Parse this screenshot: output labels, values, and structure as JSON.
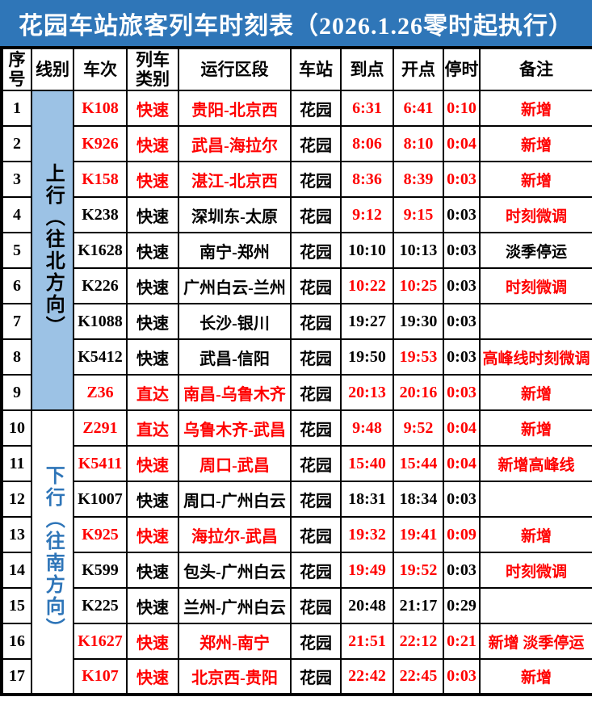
{
  "title": "花园车站旅客列车时刻表（2026.1.26零时起执行）",
  "colors": {
    "header_blue": "#2F76B8",
    "light_blue": "#9CC2E5",
    "direction_down_text": "#2E75B8",
    "highlight_red": "#FF0000",
    "text_black": "#000000"
  },
  "columns": [
    "序号",
    "线别",
    "车次",
    "列车类别",
    "运行区段",
    "车站",
    "到点",
    "开点",
    "停时",
    "备注"
  ],
  "groups": [
    {
      "label": "上行（往北方向）",
      "rows": 9,
      "bg": "#9CC2E5",
      "color": "#000000"
    },
    {
      "label": "下行（往南方向）",
      "rows": 8,
      "bg": "#FFFFFF",
      "color": "#2E75B8"
    }
  ],
  "rows": [
    {
      "no": "1",
      "train": "K108",
      "type": "快速",
      "section": "贵阳-北京西",
      "station": "花园",
      "arrive": "6:31",
      "depart": "6:41",
      "stop": "0:10",
      "remark": "新增",
      "red": [
        "train",
        "type",
        "section",
        "arrive",
        "depart",
        "stop",
        "remark"
      ]
    },
    {
      "no": "2",
      "train": "K926",
      "type": "快速",
      "section": "武昌-海拉尔",
      "station": "花园",
      "arrive": "8:06",
      "depart": "8:10",
      "stop": "0:04",
      "remark": "新增",
      "red": [
        "train",
        "type",
        "section",
        "arrive",
        "depart",
        "stop",
        "remark"
      ]
    },
    {
      "no": "3",
      "train": "K158",
      "type": "快速",
      "section": "湛江-北京西",
      "station": "花园",
      "arrive": "8:36",
      "depart": "8:39",
      "stop": "0:03",
      "remark": "新增",
      "red": [
        "train",
        "type",
        "section",
        "arrive",
        "depart",
        "stop",
        "remark"
      ]
    },
    {
      "no": "4",
      "train": "K238",
      "type": "快速",
      "section": "深圳东-太原",
      "station": "花园",
      "arrive": "9:12",
      "depart": "9:15",
      "stop": "0:03",
      "remark": "时刻微调",
      "red": [
        "arrive",
        "depart",
        "remark"
      ]
    },
    {
      "no": "5",
      "train": "K1628",
      "type": "快速",
      "section": "南宁-郑州",
      "station": "花园",
      "arrive": "10:10",
      "depart": "10:13",
      "stop": "0:03",
      "remark": "淡季停运",
      "red": []
    },
    {
      "no": "6",
      "train": "K226",
      "type": "快速",
      "section": "广州白云-兰州",
      "station": "花园",
      "arrive": "10:22",
      "depart": "10:25",
      "stop": "0:03",
      "remark": "时刻微调",
      "red": [
        "arrive",
        "depart",
        "remark"
      ]
    },
    {
      "no": "7",
      "train": "K1088",
      "type": "快速",
      "section": "长沙-银川",
      "station": "花园",
      "arrive": "19:27",
      "depart": "19:30",
      "stop": "0:03",
      "remark": "",
      "red": []
    },
    {
      "no": "8",
      "train": "K5412",
      "type": "快速",
      "section": "武昌-信阳",
      "station": "花园",
      "arrive": "19:50",
      "depart": "19:53",
      "stop": "0:03",
      "remark": "高峰线时刻微调",
      "red": [
        "depart",
        "remark"
      ]
    },
    {
      "no": "9",
      "train": "Z36",
      "type": "直达",
      "section": "南昌-乌鲁木齐",
      "station": "花园",
      "arrive": "20:13",
      "depart": "20:16",
      "stop": "0:03",
      "remark": "新增",
      "red": [
        "train",
        "type",
        "section",
        "arrive",
        "depart",
        "stop",
        "remark"
      ]
    },
    {
      "no": "10",
      "train": "Z291",
      "type": "直达",
      "section": "乌鲁木齐-武昌",
      "station": "花园",
      "arrive": "9:48",
      "depart": "9:52",
      "stop": "0:04",
      "remark": "新增",
      "red": [
        "train",
        "type",
        "section",
        "arrive",
        "depart",
        "stop",
        "remark"
      ]
    },
    {
      "no": "11",
      "train": "K5411",
      "type": "快速",
      "section": "周口-武昌",
      "station": "花园",
      "arrive": "15:40",
      "depart": "15:44",
      "stop": "0:04",
      "remark": "新增高峰线",
      "red": [
        "train",
        "type",
        "section",
        "arrive",
        "depart",
        "stop",
        "remark"
      ]
    },
    {
      "no": "12",
      "train": "K1007",
      "type": "快速",
      "section": "周口-广州白云",
      "station": "花园",
      "arrive": "18:31",
      "depart": "18:34",
      "stop": "0:03",
      "remark": "",
      "red": []
    },
    {
      "no": "13",
      "train": "K925",
      "type": "快速",
      "section": "海拉尔-武昌",
      "station": "花园",
      "arrive": "19:32",
      "depart": "19:41",
      "stop": "0:09",
      "remark": "新增",
      "red": [
        "train",
        "type",
        "section",
        "arrive",
        "depart",
        "stop",
        "remark"
      ]
    },
    {
      "no": "14",
      "train": "K599",
      "type": "快速",
      "section": "包头-广州白云",
      "station": "花园",
      "arrive": "19:49",
      "depart": "19:52",
      "stop": "0:03",
      "remark": "时刻微调",
      "red": [
        "arrive",
        "depart",
        "remark"
      ]
    },
    {
      "no": "15",
      "train": "K225",
      "type": "快速",
      "section": "兰州-广州白云",
      "station": "花园",
      "arrive": "20:48",
      "depart": "21:17",
      "stop": "0:29",
      "remark": "",
      "red": []
    },
    {
      "no": "16",
      "train": "K1627",
      "type": "快速",
      "section": "郑州-南宁",
      "station": "花园",
      "arrive": "21:51",
      "depart": "22:12",
      "stop": "0:21",
      "remark": "新增 淡季停运",
      "red": [
        "train",
        "type",
        "section",
        "arrive",
        "depart",
        "stop",
        "remark"
      ]
    },
    {
      "no": "17",
      "train": "K107",
      "type": "快速",
      "section": "北京西-贵阳",
      "station": "花园",
      "arrive": "22:42",
      "depart": "22:45",
      "stop": "0:03",
      "remark": "新增",
      "red": [
        "train",
        "type",
        "section",
        "arrive",
        "depart",
        "stop",
        "remark"
      ]
    }
  ]
}
